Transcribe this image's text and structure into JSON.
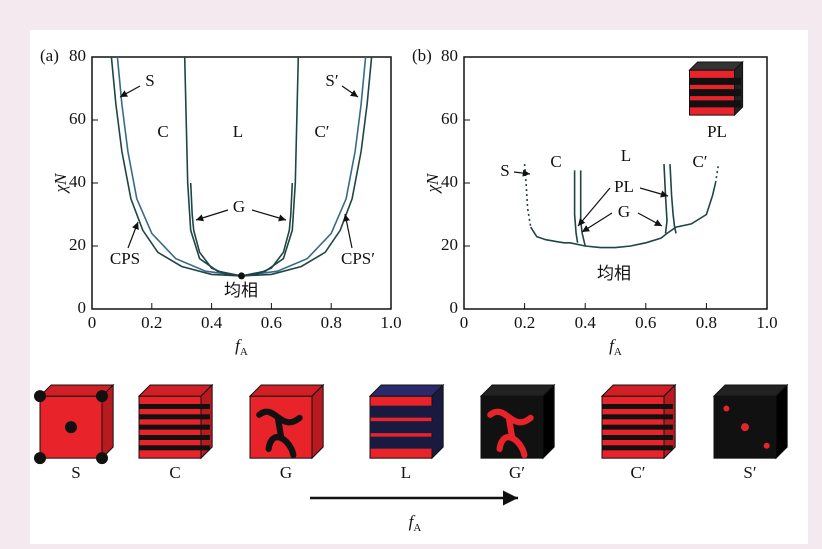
{
  "chart_data": [
    {
      "type": "line",
      "panel_label": "(a)",
      "ylabel": "χN",
      "xlabel": "f",
      "xlabel_sub": "A",
      "xlim": [
        0,
        1.0
      ],
      "ylim": [
        0,
        80
      ],
      "xticks": [
        0,
        0.2,
        0.4,
        0.6,
        0.8,
        {
          "value": 1,
          "label": "1.0"
        }
      ],
      "yticks": [
        0,
        20,
        40,
        60,
        80
      ],
      "annotations": [
        "S",
        "C",
        "L",
        "C′",
        "S′",
        "G",
        "CPS",
        "CPS′",
        "均相"
      ],
      "series": [
        {
          "color": "#1f4545",
          "x": [
            0.065,
            0.08,
            0.1,
            0.13,
            0.17,
            0.22,
            0.3,
            0.4,
            0.5,
            0.6,
            0.7,
            0.78,
            0.83,
            0.87,
            0.9,
            0.92,
            0.935
          ],
          "values": [
            80,
            65,
            50,
            35,
            25,
            18,
            13.5,
            11,
            10.5,
            11,
            13.5,
            18,
            25,
            35,
            50,
            65,
            80
          ]
        },
        {
          "color": "#3a6a8a",
          "x": [
            0.085,
            0.1,
            0.12,
            0.15,
            0.2,
            0.28,
            0.38,
            0.5,
            0.62,
            0.72,
            0.8,
            0.85,
            0.88,
            0.9,
            0.915
          ],
          "values": [
            80,
            65,
            50,
            35,
            24,
            16,
            12,
            10.5,
            12,
            16,
            24,
            35,
            50,
            65,
            80
          ]
        },
        {
          "color": "#1f4545",
          "x": [
            0.31,
            0.315,
            0.32,
            0.33,
            0.36,
            0.42,
            0.5
          ],
          "values": [
            80,
            60,
            40,
            25,
            16,
            12,
            10.5
          ]
        },
        {
          "color": "#1f4545",
          "x": [
            0.33,
            0.335,
            0.34,
            0.36,
            0.4,
            0.45,
            0.5
          ],
          "values": [
            40,
            30,
            25,
            18,
            13,
            11,
            10.5
          ]
        },
        {
          "color": "#1f4545",
          "x": [
            0.69,
            0.685,
            0.68,
            0.67,
            0.64,
            0.58,
            0.5
          ],
          "values": [
            80,
            60,
            40,
            25,
            16,
            12,
            10.5
          ]
        },
        {
          "color": "#1f4545",
          "x": [
            0.67,
            0.665,
            0.66,
            0.64,
            0.6,
            0.55,
            0.5
          ],
          "values": [
            40,
            30,
            25,
            18,
            13,
            11,
            10.5
          ]
        }
      ],
      "points": {
        "x": [
          0.5
        ],
        "values": [
          10.5
        ]
      }
    },
    {
      "type": "line",
      "panel_label": "(b)",
      "ylabel": "χN",
      "xlabel": "f",
      "xlabel_sub": "A",
      "xlim": [
        0,
        1.0
      ],
      "ylim": [
        0,
        80
      ],
      "xticks": [
        0,
        0.2,
        0.4,
        0.6,
        0.8,
        {
          "value": 1,
          "label": "1.0"
        }
      ],
      "yticks": [
        0,
        20,
        40,
        60,
        80
      ],
      "annotations": [
        "S",
        "C",
        "L",
        "C′",
        "PL",
        "G",
        "均相",
        "PL"
      ],
      "series": [
        {
          "color": "#1f4545",
          "dash": true,
          "x": [
            0.2,
            0.205,
            0.21,
            0.22
          ],
          "values": [
            46,
            40,
            32,
            26
          ]
        },
        {
          "color": "#1f4545",
          "x": [
            0.22,
            0.24,
            0.27,
            0.3,
            0.33,
            0.35,
            0.4,
            0.45,
            0.5,
            0.55,
            0.6,
            0.65,
            0.67,
            0.7,
            0.75,
            0.8,
            0.82,
            0.83
          ],
          "values": [
            26,
            23,
            22,
            21.5,
            21,
            21,
            20,
            19.5,
            19.5,
            20,
            21,
            22.5,
            24,
            26,
            27,
            30,
            36,
            40
          ]
        },
        {
          "color": "#1f4545",
          "dash": true,
          "x": [
            0.83,
            0.835,
            0.84
          ],
          "values": [
            40,
            43,
            46
          ]
        },
        {
          "color": "#1f4545",
          "x": [
            0.365,
            0.365,
            0.37,
            0.375
          ],
          "values": [
            44,
            30,
            24,
            21
          ]
        },
        {
          "color": "#1f4545",
          "x": [
            0.385,
            0.385,
            0.39,
            0.4
          ],
          "values": [
            44,
            28,
            24,
            20
          ]
        },
        {
          "color": "#1f4545",
          "x": [
            0.66,
            0.665,
            0.67,
            0.665
          ],
          "values": [
            46,
            36,
            28,
            24
          ]
        },
        {
          "color": "#1f4545",
          "x": [
            0.68,
            0.685,
            0.69,
            0.695,
            0.7
          ],
          "values": [
            46,
            36,
            30,
            26,
            24
          ]
        }
      ]
    }
  ],
  "morphologies": [
    "S",
    "C",
    "G",
    "L",
    "G′",
    "C′",
    "S′"
  ],
  "arrow_label": {
    "text": "f",
    "sub": "A"
  }
}
